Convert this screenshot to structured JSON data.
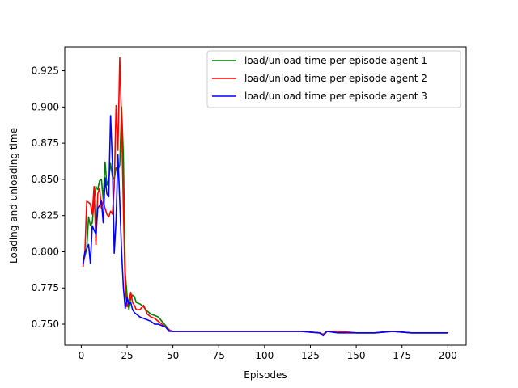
{
  "chart_data": {
    "type": "line",
    "xlabel": "Episodes",
    "ylabel": "Loading and unloading time",
    "xlim": [
      -9,
      210
    ],
    "ylim": [
      0.7355,
      0.9415
    ],
    "x_ticks": [
      0,
      25,
      50,
      75,
      100,
      125,
      150,
      175,
      200
    ],
    "y_ticks": [
      0.75,
      0.775,
      0.8,
      0.825,
      0.85,
      0.875,
      0.9,
      0.925
    ],
    "y_tick_labels": [
      "0.750",
      "0.775",
      "0.800",
      "0.825",
      "0.850",
      "0.875",
      "0.900",
      "0.925"
    ],
    "grid": false,
    "legend_position": "top-right",
    "series": [
      {
        "name": "load/unload time per episode agent 1",
        "color": "#008000",
        "x": [
          1,
          2,
          3,
          4,
          5,
          6,
          7,
          8,
          9,
          10,
          11,
          12,
          13,
          14,
          15,
          16,
          17,
          18,
          19,
          20,
          21,
          22,
          23,
          24,
          25,
          26,
          27,
          28,
          29,
          30,
          32,
          34,
          36,
          38,
          40,
          42,
          44,
          46,
          48,
          50,
          55,
          60,
          70,
          80,
          90,
          100,
          110,
          120,
          130,
          132,
          134,
          140,
          150,
          160,
          170,
          180,
          190,
          200
        ],
        "y": [
          0.792,
          0.797,
          0.802,
          0.824,
          0.818,
          0.82,
          0.835,
          0.845,
          0.843,
          0.849,
          0.85,
          0.836,
          0.862,
          0.846,
          0.85,
          0.861,
          0.852,
          0.85,
          0.858,
          0.856,
          0.86,
          0.9,
          0.866,
          0.785,
          0.77,
          0.76,
          0.768,
          0.77,
          0.769,
          0.765,
          0.764,
          0.762,
          0.759,
          0.757,
          0.756,
          0.755,
          0.752,
          0.749,
          0.746,
          0.745,
          0.745,
          0.745,
          0.745,
          0.745,
          0.745,
          0.745,
          0.745,
          0.745,
          0.744,
          0.743,
          0.745,
          0.745,
          0.744,
          0.744,
          0.745,
          0.744,
          0.744,
          0.744
        ]
      },
      {
        "name": "load/unload time per episode agent 2",
        "color": "#ff0000",
        "x": [
          1,
          2,
          3,
          4,
          5,
          6,
          7,
          8,
          9,
          10,
          11,
          12,
          13,
          14,
          15,
          16,
          17,
          18,
          19,
          20,
          21,
          22,
          23,
          24,
          25,
          26,
          27,
          28,
          29,
          30,
          32,
          34,
          36,
          38,
          40,
          42,
          44,
          46,
          48,
          50,
          55,
          60,
          70,
          80,
          90,
          100,
          110,
          120,
          130,
          132,
          134,
          140,
          150,
          160,
          170,
          180,
          190,
          200
        ],
        "y": [
          0.79,
          0.8,
          0.835,
          0.834,
          0.833,
          0.826,
          0.845,
          0.805,
          0.84,
          0.844,
          0.83,
          0.835,
          0.83,
          0.826,
          0.824,
          0.828,
          0.826,
          0.845,
          0.901,
          0.87,
          0.934,
          0.89,
          0.83,
          0.775,
          0.762,
          0.766,
          0.772,
          0.765,
          0.763,
          0.76,
          0.76,
          0.763,
          0.757,
          0.755,
          0.754,
          0.752,
          0.75,
          0.748,
          0.746,
          0.745,
          0.745,
          0.745,
          0.745,
          0.745,
          0.745,
          0.745,
          0.745,
          0.745,
          0.744,
          0.743,
          0.745,
          0.745,
          0.744,
          0.744,
          0.745,
          0.744,
          0.744,
          0.744
        ]
      },
      {
        "name": "load/unload time per episode agent 3",
        "color": "#0000ff",
        "x": [
          1,
          2,
          3,
          4,
          5,
          6,
          7,
          8,
          9,
          10,
          11,
          12,
          13,
          14,
          15,
          16,
          17,
          18,
          19,
          20,
          21,
          22,
          23,
          24,
          25,
          26,
          27,
          28,
          29,
          30,
          32,
          34,
          36,
          38,
          40,
          42,
          44,
          46,
          48,
          50,
          55,
          60,
          70,
          80,
          90,
          100,
          110,
          120,
          130,
          132,
          134,
          140,
          150,
          160,
          170,
          180,
          190,
          200
        ],
        "y": [
          0.792,
          0.8,
          0.802,
          0.805,
          0.792,
          0.818,
          0.815,
          0.812,
          0.83,
          0.832,
          0.835,
          0.82,
          0.851,
          0.84,
          0.838,
          0.894,
          0.861,
          0.799,
          0.822,
          0.867,
          0.835,
          0.8,
          0.775,
          0.761,
          0.768,
          0.764,
          0.765,
          0.76,
          0.758,
          0.757,
          0.755,
          0.754,
          0.753,
          0.752,
          0.75,
          0.75,
          0.749,
          0.748,
          0.745,
          0.745,
          0.745,
          0.745,
          0.745,
          0.745,
          0.745,
          0.745,
          0.745,
          0.745,
          0.744,
          0.742,
          0.745,
          0.744,
          0.744,
          0.744,
          0.745,
          0.744,
          0.744,
          0.744
        ]
      }
    ]
  }
}
